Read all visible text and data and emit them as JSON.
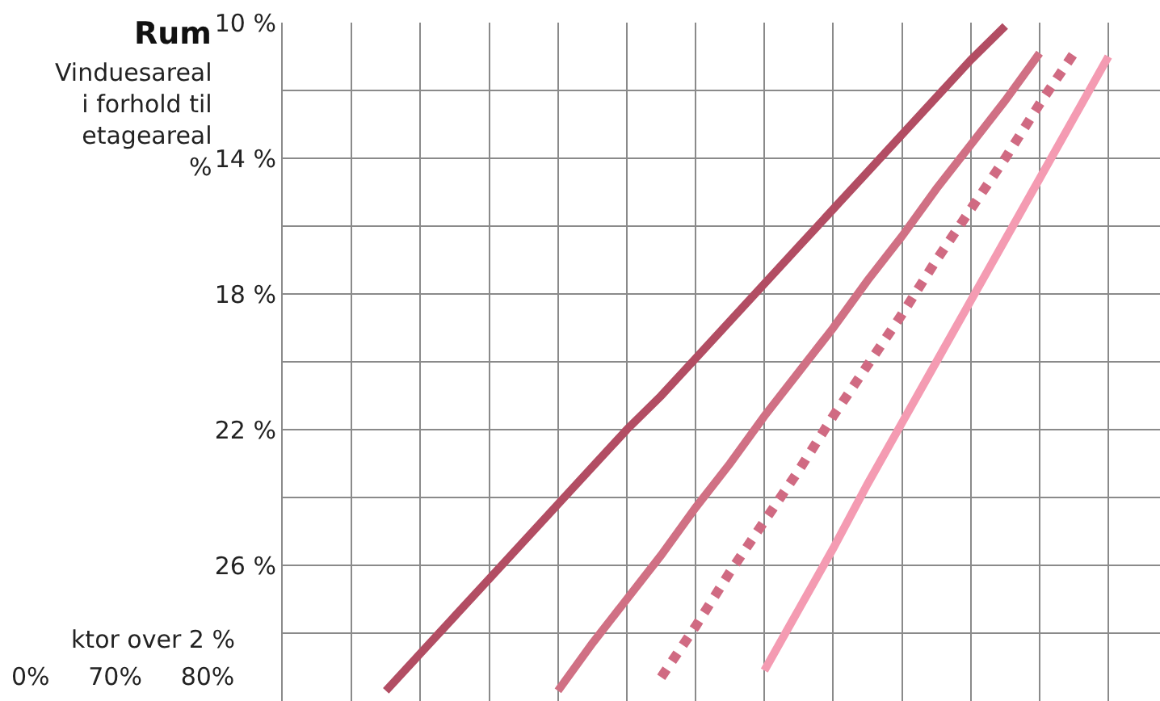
{
  "chart_data": {
    "type": "line",
    "title": "Rum",
    "ylabel": "Vinduesareal\ni forhold til\netageareal\n%",
    "categories": [
      null,
      null,
      null,
      null,
      null,
      null,
      null,
      null,
      null,
      null,
      null,
      null,
      null,
      null,
      null,
      null,
      null,
      null,
      null,
      null,
      null,
      null,
      null,
      null,
      null,
      null
    ],
    "series": [
      {
        "color": "#b24d63",
        "line_style": "solid",
        "values": [
          null,
          null,
          null,
          29.7,
          28.6,
          27.5,
          26.4,
          25.3,
          24.2,
          23.1,
          22.0,
          21.0,
          19.9,
          18.8,
          17.7,
          16.6,
          15.5,
          14.4,
          13.3,
          12.2,
          11.1,
          10.1,
          null,
          null,
          null,
          null
        ]
      },
      {
        "color": "#d07084",
        "line_style": "solid",
        "values": [
          null,
          null,
          null,
          null,
          null,
          null,
          null,
          null,
          29.7,
          28.3,
          27.0,
          25.7,
          24.3,
          23.0,
          21.6,
          20.3,
          19.0,
          17.6,
          16.3,
          14.9,
          13.6,
          12.3,
          10.9,
          null,
          null,
          null
        ]
      },
      {
        "color": "#d06a82",
        "line_style": "dotted",
        "values": [
          null,
          null,
          null,
          null,
          null,
          null,
          null,
          null,
          null,
          null,
          null,
          29.3,
          27.8,
          26.2,
          24.7,
          23.2,
          21.6,
          20.1,
          18.6,
          17.0,
          15.5,
          14.0,
          12.4,
          10.9,
          null,
          null
        ]
      },
      {
        "color": "#f49bb2",
        "line_style": "solid",
        "values": [
          null,
          null,
          null,
          null,
          null,
          null,
          null,
          null,
          null,
          null,
          null,
          null,
          null,
          null,
          29.1,
          27.3,
          25.5,
          23.6,
          21.8,
          20.0,
          18.2,
          16.4,
          14.6,
          12.8,
          11.0,
          null
        ]
      }
    ],
    "ylim": [
      30,
      10
    ],
    "yticks": [
      {
        "value": 10,
        "label": "10 %"
      },
      {
        "value": 12,
        "label": null
      },
      {
        "value": 14,
        "label": "14 %"
      },
      {
        "value": 16,
        "label": null
      },
      {
        "value": 18,
        "label": "18 %"
      },
      {
        "value": 20,
        "label": null
      },
      {
        "value": 22,
        "label": "22 %"
      },
      {
        "value": 24,
        "label": null
      },
      {
        "value": 26,
        "label": "26 %"
      },
      {
        "value": 28,
        "label": null
      },
      {
        "value": 30,
        "label": null
      }
    ],
    "grid": true,
    "tick_labels": "y",
    "marker": "none",
    "annotations": [
      "ktor over 2 %",
      "0%     70%     80%"
    ]
  }
}
